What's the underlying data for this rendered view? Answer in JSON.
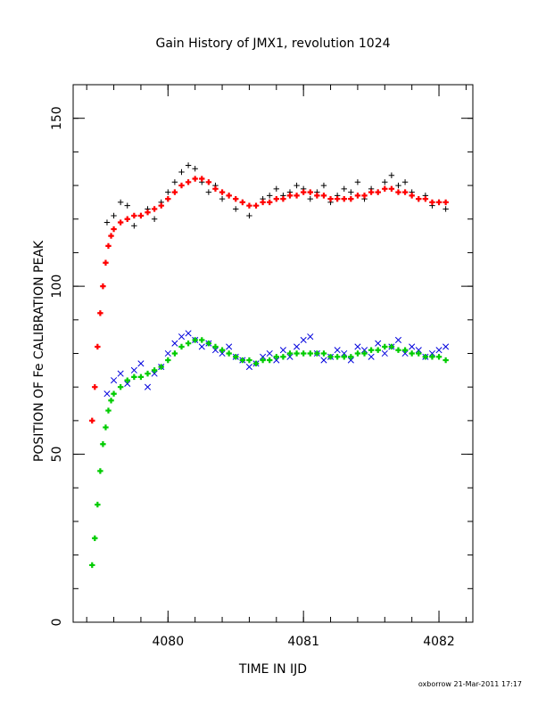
{
  "chart_data": {
    "type": "scatter",
    "title": "Gain History of JMX1, revolution 1024",
    "xlabel": "TIME IN IJD",
    "ylabel": "POSITION OF Fe CALIBRATION PEAK",
    "xlim": [
      4079.3,
      4082.25
    ],
    "ylim": [
      0,
      160
    ],
    "x_ticks": [
      4080,
      4081,
      4082
    ],
    "x_tick_labels": [
      "4080",
      "4081",
      "4082"
    ],
    "y_ticks": [
      0,
      50,
      100,
      150
    ],
    "y_tick_labels": [
      "0",
      "50",
      "100",
      "150"
    ],
    "grid": false,
    "legend": "none",
    "footer": "oxborrow 21-Mar-2011 17:17",
    "series": [
      {
        "marker": "+",
        "color": "#000000",
        "x": [
          4079.55,
          4079.6,
          4079.65,
          4079.7,
          4079.75,
          4079.8,
          4079.85,
          4079.9,
          4079.95,
          4080.0,
          4080.05,
          4080.1,
          4080.15,
          4080.2,
          4080.25,
          4080.3,
          4080.35,
          4080.4,
          4080.45,
          4080.5,
          4080.55,
          4080.6,
          4080.65,
          4080.7,
          4080.75,
          4080.8,
          4080.85,
          4080.9,
          4080.95,
          4081.0,
          4081.05,
          4081.1,
          4081.15,
          4081.2,
          4081.25,
          4081.3,
          4081.35,
          4081.4,
          4081.45,
          4081.5,
          4081.55,
          4081.6,
          4081.65,
          4081.7,
          4081.75,
          4081.8,
          4081.85,
          4081.9,
          4081.95,
          4082.0,
          4082.05
        ],
        "y": [
          119,
          121,
          125,
          124,
          118,
          121,
          123,
          120,
          125,
          128,
          131,
          134,
          136,
          135,
          131,
          128,
          130,
          126,
          127,
          123,
          125,
          121,
          124,
          126,
          127,
          129,
          127,
          128,
          130,
          129,
          126,
          128,
          130,
          125,
          127,
          129,
          128,
          131,
          126,
          129,
          128,
          131,
          133,
          130,
          131,
          128,
          126,
          127,
          124,
          125,
          123
        ]
      },
      {
        "marker": "+",
        "color": "#ff0000",
        "x": [
          4079.44,
          4079.46,
          4079.48,
          4079.5,
          4079.52,
          4079.54,
          4079.56,
          4079.58,
          4079.6,
          4079.65,
          4079.7,
          4079.75,
          4079.8,
          4079.85,
          4079.9,
          4079.95,
          4080.0,
          4080.05,
          4080.1,
          4080.15,
          4080.2,
          4080.25,
          4080.3,
          4080.35,
          4080.4,
          4080.45,
          4080.5,
          4080.55,
          4080.6,
          4080.65,
          4080.7,
          4080.75,
          4080.8,
          4080.85,
          4080.9,
          4080.95,
          4081.0,
          4081.05,
          4081.1,
          4081.15,
          4081.2,
          4081.25,
          4081.3,
          4081.35,
          4081.4,
          4081.45,
          4081.5,
          4081.55,
          4081.6,
          4081.65,
          4081.7,
          4081.75,
          4081.8,
          4081.85,
          4081.9,
          4081.95,
          4082.0,
          4082.05
        ],
        "y": [
          60,
          70,
          82,
          92,
          100,
          107,
          112,
          115,
          117,
          119,
          120,
          121,
          121,
          122,
          123,
          124,
          126,
          128,
          130,
          131,
          132,
          132,
          131,
          129,
          128,
          127,
          126,
          125,
          124,
          124,
          125,
          125,
          126,
          126,
          127,
          127,
          128,
          128,
          127,
          127,
          126,
          126,
          126,
          126,
          127,
          127,
          128,
          128,
          129,
          129,
          128,
          128,
          127,
          126,
          126,
          125,
          125,
          125
        ]
      },
      {
        "marker": "x",
        "color": "#0000dd",
        "x": [
          4079.55,
          4079.6,
          4079.65,
          4079.7,
          4079.75,
          4079.8,
          4079.85,
          4079.9,
          4079.95,
          4080.0,
          4080.05,
          4080.1,
          4080.15,
          4080.2,
          4080.25,
          4080.3,
          4080.35,
          4080.4,
          4080.45,
          4080.5,
          4080.55,
          4080.6,
          4080.65,
          4080.7,
          4080.75,
          4080.8,
          4080.85,
          4080.9,
          4080.95,
          4081.0,
          4081.05,
          4081.1,
          4081.15,
          4081.2,
          4081.25,
          4081.3,
          4081.35,
          4081.4,
          4081.45,
          4081.5,
          4081.55,
          4081.6,
          4081.65,
          4081.7,
          4081.75,
          4081.8,
          4081.85,
          4081.9,
          4081.95,
          4082.0,
          4082.05
        ],
        "y": [
          68,
          72,
          74,
          71,
          75,
          77,
          70,
          74,
          76,
          80,
          83,
          85,
          86,
          84,
          82,
          83,
          81,
          80,
          82,
          79,
          78,
          76,
          77,
          79,
          80,
          78,
          81,
          79,
          82,
          84,
          85,
          80,
          78,
          79,
          81,
          80,
          78,
          82,
          81,
          79,
          83,
          80,
          82,
          84,
          80,
          82,
          81,
          79,
          80,
          81,
          82
        ]
      },
      {
        "marker": "+",
        "color": "#00cc00",
        "x": [
          4079.44,
          4079.46,
          4079.48,
          4079.5,
          4079.52,
          4079.54,
          4079.56,
          4079.58,
          4079.6,
          4079.65,
          4079.7,
          4079.75,
          4079.8,
          4079.85,
          4079.9,
          4079.95,
          4080.0,
          4080.05,
          4080.1,
          4080.15,
          4080.2,
          4080.25,
          4080.3,
          4080.35,
          4080.4,
          4080.45,
          4080.5,
          4080.55,
          4080.6,
          4080.65,
          4080.7,
          4080.75,
          4080.8,
          4080.85,
          4080.9,
          4080.95,
          4081.0,
          4081.05,
          4081.1,
          4081.15,
          4081.2,
          4081.25,
          4081.3,
          4081.35,
          4081.4,
          4081.45,
          4081.5,
          4081.55,
          4081.6,
          4081.65,
          4081.7,
          4081.75,
          4081.8,
          4081.85,
          4081.9,
          4081.95,
          4082.0,
          4082.05
        ],
        "y": [
          17,
          25,
          35,
          45,
          53,
          58,
          63,
          66,
          68,
          70,
          72,
          73,
          73,
          74,
          75,
          76,
          78,
          80,
          82,
          83,
          84,
          84,
          83,
          82,
          81,
          80,
          79,
          78,
          78,
          77,
          78,
          78,
          79,
          79,
          80,
          80,
          80,
          80,
          80,
          80,
          79,
          79,
          79,
          79,
          80,
          80,
          81,
          81,
          82,
          82,
          81,
          81,
          80,
          80,
          79,
          79,
          79,
          78
        ]
      }
    ]
  }
}
